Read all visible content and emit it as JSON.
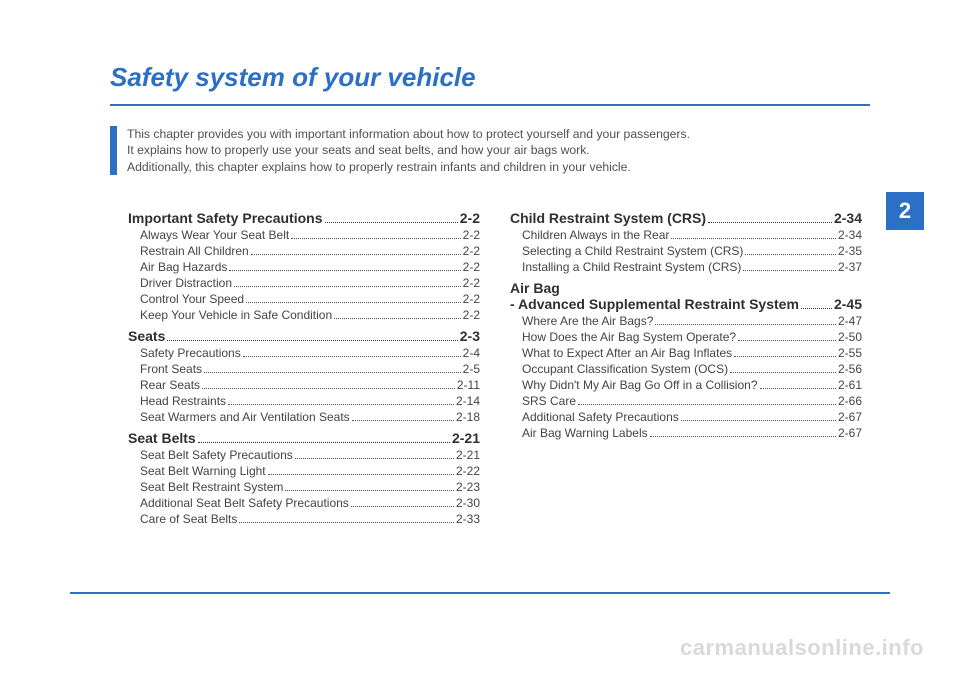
{
  "title": "Safety system of your vehicle",
  "intro_lines": [
    "This chapter provides you with important information about how to protect yourself and your passengers.",
    "It explains how to properly use your seats and seat belts, and how your air bags work.",
    "Additionally, this chapter explains how to properly restrain infants and children in your vehicle."
  ],
  "chapter_tab": "2",
  "watermark": "carmanualsonline.info",
  "colors": {
    "brand": "#2b70c4",
    "title": "#2b70c4",
    "text": "#505050",
    "heading": "#303030",
    "sub": "#444444",
    "tab_bg": "#2b70c4",
    "tab_fg": "#ffffff",
    "watermark": "#d9d9d9"
  },
  "toc": {
    "left": [
      {
        "type": "h",
        "label": "Important Safety Precautions",
        "page": "2-2"
      },
      {
        "type": "s",
        "label": "Always Wear Your Seat Belt",
        "page": "2-2"
      },
      {
        "type": "s",
        "label": "Restrain All Children",
        "page": "2-2"
      },
      {
        "type": "s",
        "label": "Air Bag Hazards",
        "page": "2-2"
      },
      {
        "type": "s",
        "label": "Driver Distraction",
        "page": "2-2"
      },
      {
        "type": "s",
        "label": "Control Your Speed",
        "page": "2-2"
      },
      {
        "type": "s",
        "label": "Keep Your Vehicle in Safe Condition",
        "page": "2-2"
      },
      {
        "type": "h",
        "label": "Seats",
        "page": "2-3"
      },
      {
        "type": "s",
        "label": "Safety Precautions",
        "page": "2-4"
      },
      {
        "type": "s",
        "label": "Front Seats",
        "page": "2-5"
      },
      {
        "type": "s",
        "label": "Rear Seats",
        "page": "2-11"
      },
      {
        "type": "s",
        "label": "Head Restraints",
        "page": "2-14"
      },
      {
        "type": "s",
        "label": "Seat Warmers and Air Ventilation Seats",
        "page": "2-18"
      },
      {
        "type": "h",
        "label": "Seat Belts",
        "page": "2-21"
      },
      {
        "type": "s",
        "label": "Seat Belt Safety Precautions",
        "page": "2-21"
      },
      {
        "type": "s",
        "label": "Seat Belt Warning Light",
        "page": "2-22"
      },
      {
        "type": "s",
        "label": "Seat Belt Restraint System",
        "page": "2-23"
      },
      {
        "type": "s",
        "label": "Additional Seat Belt Safety Precautions",
        "page": "2-30"
      },
      {
        "type": "s",
        "label": "Care of Seat Belts",
        "page": "2-33"
      }
    ],
    "right": [
      {
        "type": "h",
        "label": "Child Restraint System (CRS)",
        "page": "2-34"
      },
      {
        "type": "s",
        "label": "Children Always in the Rear",
        "page": "2-34"
      },
      {
        "type": "s",
        "label": "Selecting a Child Restraint System (CRS)",
        "page": "2-35"
      },
      {
        "type": "s",
        "label": "Installing a Child Restraint System (CRS)",
        "page": "2-37"
      },
      {
        "type": "h2",
        "label1": "Air Bag",
        "label2": "- Advanced Supplemental Restraint System",
        "page": "2-45"
      },
      {
        "type": "s",
        "label": "Where Are the Air Bags?",
        "page": "2-47"
      },
      {
        "type": "s",
        "label": "How Does the Air Bag System Operate?",
        "page": "2-50"
      },
      {
        "type": "s",
        "label": "What to Expect After an Air Bag Inflates",
        "page": "2-55"
      },
      {
        "type": "s",
        "label": "Occupant Classification System (OCS)",
        "page": "2-56"
      },
      {
        "type": "s",
        "label": "Why Didn't My Air Bag Go Off in a Collision?",
        "page": "2-61"
      },
      {
        "type": "s",
        "label": "SRS Care",
        "page": "2-66"
      },
      {
        "type": "s",
        "label": "Additional Safety Precautions",
        "page": "2-67"
      },
      {
        "type": "s",
        "label": "Air Bag Warning Labels",
        "page": "2-67"
      }
    ]
  }
}
